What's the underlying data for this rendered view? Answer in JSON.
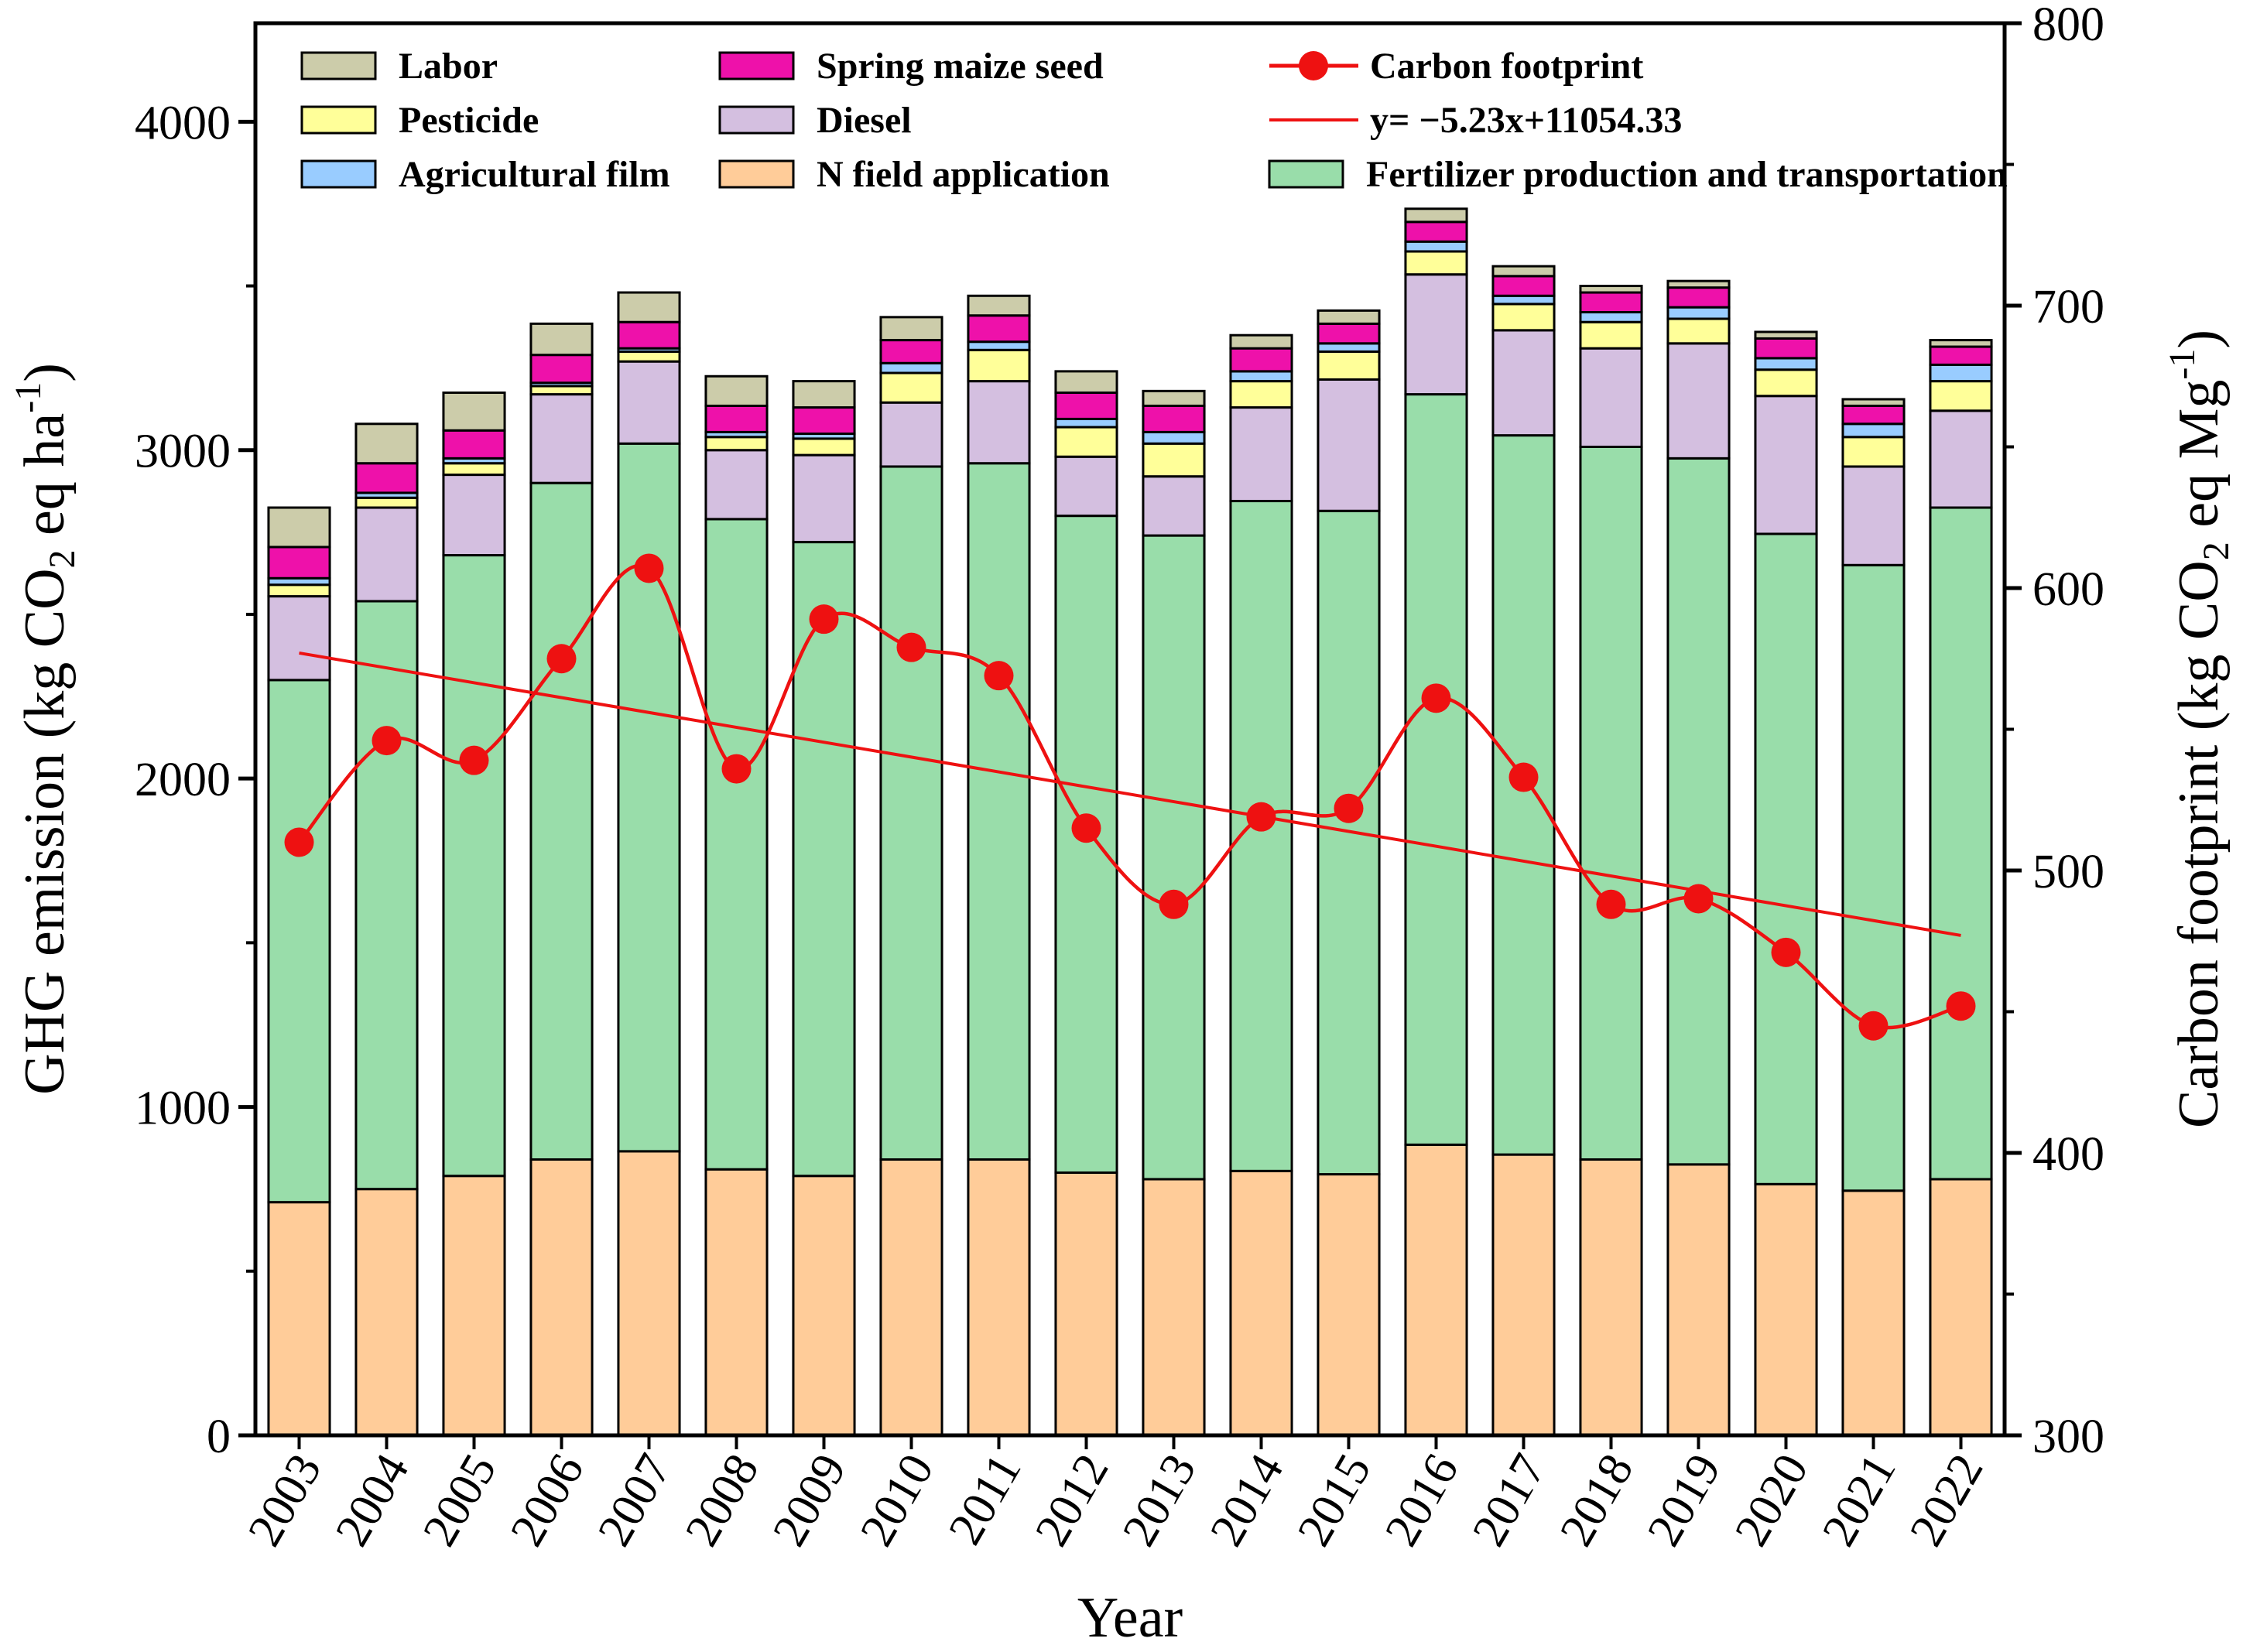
{
  "chart_data": {
    "type": "bar",
    "stacked": true,
    "xlabel": "Year",
    "ylabel": {
      "prefix": "GHG emission (kg CO",
      "sub": "2",
      "mid": " eq ha",
      "sup": "-1",
      "suffix": ")"
    },
    "y2label": {
      "prefix": "Carbon footprint (kg CO",
      "sub": "2",
      "mid": " eq Mg",
      "sup": "-1",
      "suffix": ")"
    },
    "ylim": [
      0,
      4300
    ],
    "y2lim": [
      300,
      800
    ],
    "yticks": [
      "0",
      "1000",
      "2000",
      "3000",
      "4000"
    ],
    "y2ticks": [
      "300",
      "400",
      "500",
      "600",
      "700",
      "800"
    ],
    "categories": [
      "2003",
      "2004",
      "2005",
      "2006",
      "2007",
      "2008",
      "2009",
      "2010",
      "2011",
      "2012",
      "2013",
      "2014",
      "2015",
      "2016",
      "2017",
      "2018",
      "2019",
      "2020",
      "2021",
      "2022"
    ],
    "series": [
      {
        "name": "N field application",
        "color": "#FFCC99",
        "values": [
          710,
          750,
          790,
          840,
          865,
          810,
          790,
          840,
          840,
          800,
          780,
          805,
          795,
          885,
          855,
          840,
          825,
          765,
          745,
          780
        ]
      },
      {
        "name": "Fertilizer production and transportation",
        "color": "#99DDAA",
        "values": [
          1590,
          1790,
          1890,
          2060,
          2155,
          1980,
          1930,
          2110,
          2120,
          2000,
          1960,
          2040,
          2020,
          2285,
          2190,
          2170,
          2150,
          1980,
          1905,
          2045
        ]
      },
      {
        "name": "Diesel",
        "color": "#D4BFE0",
        "values": [
          255,
          285,
          245,
          270,
          250,
          210,
          265,
          195,
          250,
          180,
          180,
          285,
          400,
          365,
          320,
          300,
          350,
          420,
          300,
          295
        ]
      },
      {
        "name": "Pesticide",
        "color": "#FFFF99",
        "values": [
          35,
          30,
          35,
          25,
          30,
          40,
          50,
          90,
          95,
          90,
          100,
          80,
          85,
          70,
          80,
          80,
          75,
          80,
          90,
          90
        ]
      },
      {
        "name": "Agricultural film",
        "color": "#99CCFF",
        "values": [
          20,
          15,
          15,
          10,
          10,
          15,
          15,
          30,
          25,
          25,
          35,
          30,
          25,
          30,
          25,
          30,
          35,
          35,
          40,
          50
        ]
      },
      {
        "name": "Spring maize seed",
        "color": "#EE11AA",
        "values": [
          95,
          90,
          85,
          85,
          80,
          80,
          80,
          70,
          80,
          80,
          80,
          70,
          60,
          60,
          60,
          60,
          60,
          60,
          55,
          55
        ]
      },
      {
        "name": "Labor",
        "color": "#CCCCAA",
        "values": [
          120,
          120,
          115,
          95,
          90,
          90,
          80,
          70,
          60,
          65,
          45,
          40,
          40,
          40,
          30,
          20,
          20,
          20,
          20,
          20
        ]
      }
    ],
    "line_series": {
      "name": "Carbon footprint",
      "color": "#EE1111",
      "axis": "right",
      "values": [
        510,
        546,
        539,
        575,
        607,
        536,
        589,
        579,
        569,
        515,
        488,
        519,
        522,
        561,
        533,
        488,
        490,
        471,
        445,
        452
      ]
    },
    "trend": {
      "name": "y= −5.23x+11054.33",
      "color": "#EE1111",
      "axis": "right",
      "start": 577,
      "end": 477
    },
    "legend": {
      "placement": "top",
      "entries": [
        "Labor",
        "Spring maize seed",
        "Carbon footprint",
        "Pesticide",
        "Diesel",
        "y= −5.23x+11054.33",
        "Agricultural film",
        "N field application",
        "Fertilizer production and transportation"
      ]
    }
  }
}
